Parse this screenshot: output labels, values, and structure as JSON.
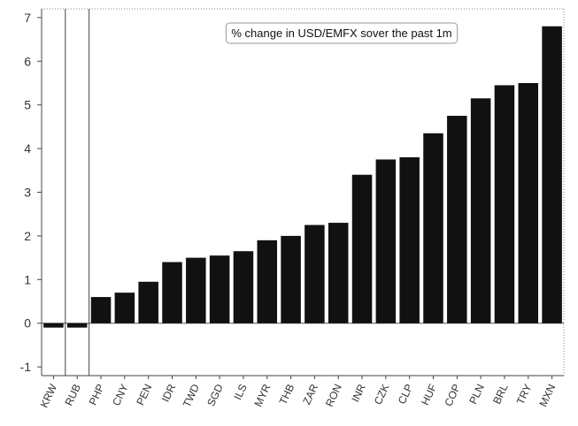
{
  "chart_data": {
    "type": "bar",
    "title": "% change in USD/EMFX sover the past 1m",
    "xlabel": "",
    "ylabel": "",
    "ylim": [
      -1.2,
      7.2
    ],
    "yticks": [
      -1,
      0,
      1,
      2,
      3,
      4,
      5,
      6,
      7
    ],
    "grid": false,
    "categories": [
      "KRW",
      "RUB",
      "PHP",
      "CNY",
      "PEN",
      "IDR",
      "TWD",
      "SGD",
      "ILS",
      "MYR",
      "THB",
      "ZAR",
      "RON",
      "INR",
      "CZK",
      "CLP",
      "HUF",
      "COP",
      "PLN",
      "BRL",
      "TRY",
      "MXN"
    ],
    "values": [
      -0.1,
      -0.1,
      0.6,
      0.7,
      0.95,
      1.4,
      1.5,
      1.55,
      1.65,
      1.9,
      2.0,
      2.25,
      2.3,
      3.4,
      3.75,
      3.8,
      4.35,
      4.75,
      5.15,
      5.45,
      5.5,
      6.8
    ],
    "bar_color": "#111111",
    "legend": "none"
  }
}
